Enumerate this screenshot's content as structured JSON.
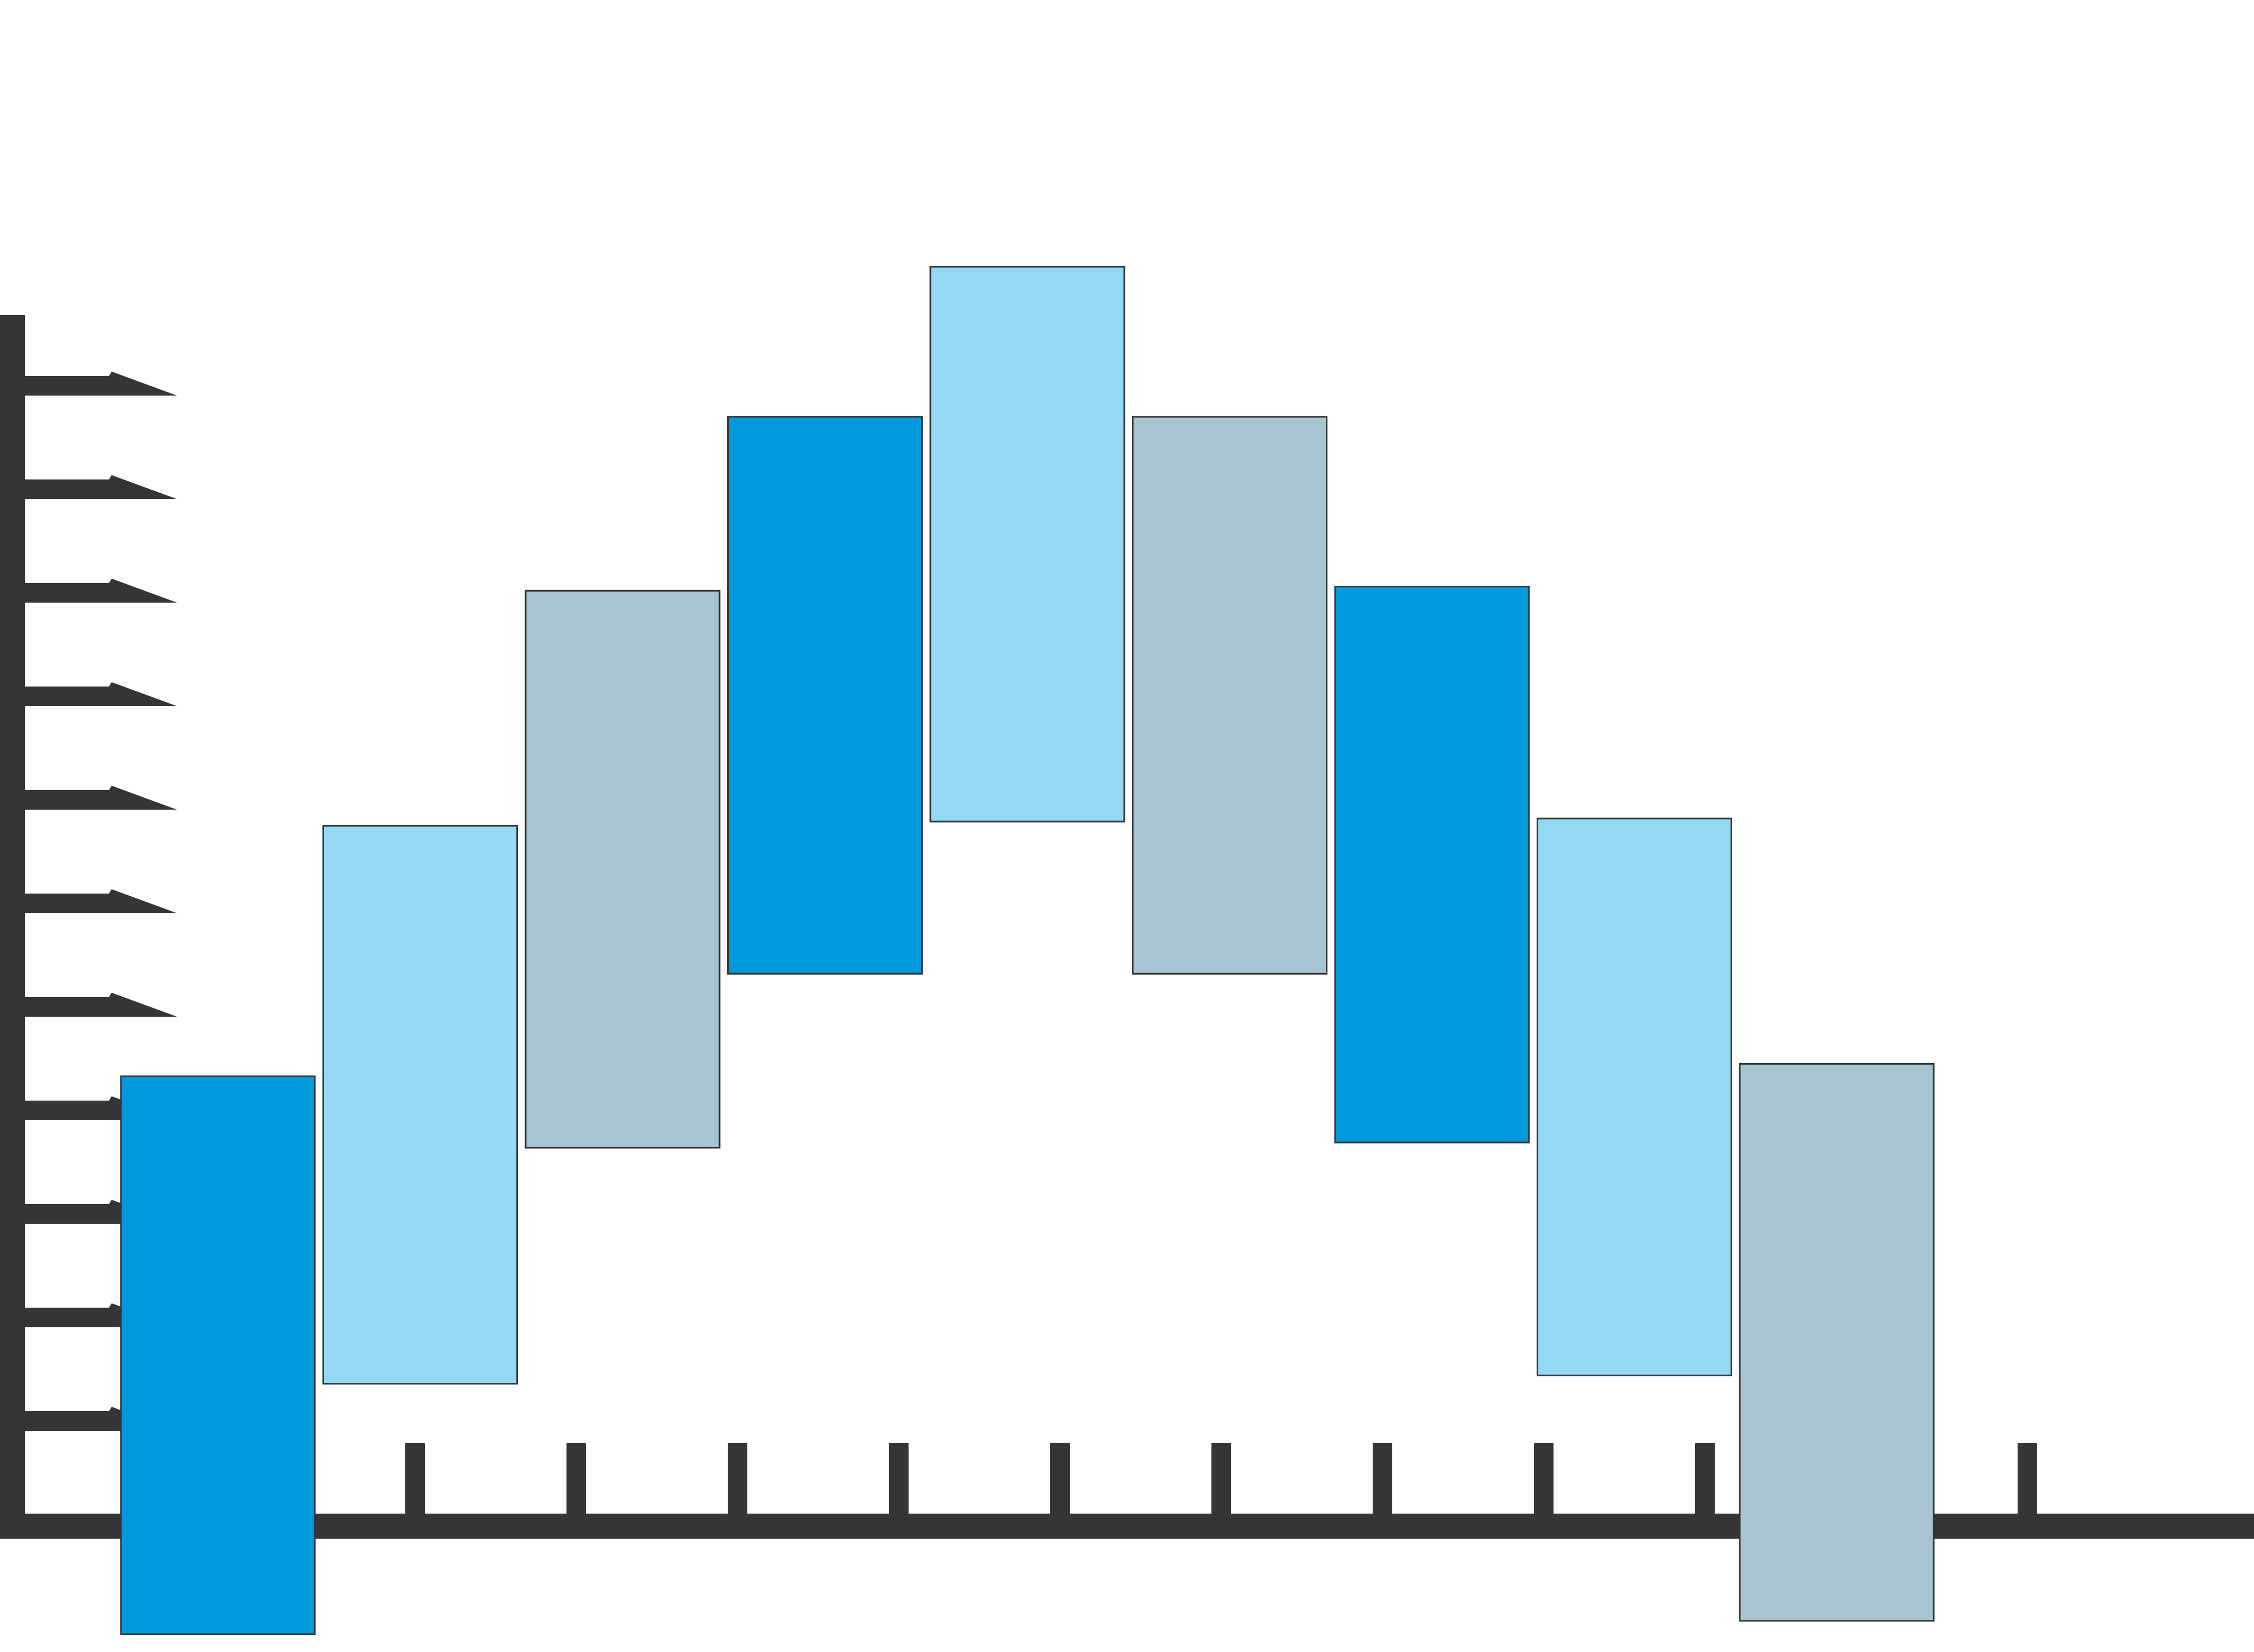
{
  "chart_data": {
    "type": "bar",
    "subtype": "floating-range",
    "title": "",
    "xlabel": "",
    "ylabel": "",
    "tick_labels_printed": false,
    "categories": [
      "",
      "",
      "",
      "",
      "",
      "",
      "",
      "",
      ""
    ],
    "ranges": [
      {
        "low": -1.06,
        "high": 4.33
      },
      {
        "low": 1.36,
        "high": 6.75
      },
      {
        "low": 3.64,
        "high": 9.02
      },
      {
        "low": 5.32,
        "high": 10.7
      },
      {
        "low": 6.79,
        "high": 12.15
      },
      {
        "low": 5.32,
        "high": 10.7
      },
      {
        "low": 3.69,
        "high": 9.06
      },
      {
        "low": 1.44,
        "high": 6.82
      },
      {
        "low": -0.93,
        "high": 4.45
      }
    ],
    "colors": [
      "#0099dc",
      "#93d9f6",
      "#a7c4d3",
      "#0099dc",
      "#93d9f6",
      "#a7c4d3",
      "#0099dc",
      "#93d9f6",
      "#a7c4d3"
    ],
    "axis_color": "#363435",
    "bar_stroke": "#363435",
    "ylim": [
      -1.18,
      12.15
    ],
    "xlim": [
      0,
      14
    ],
    "y_ticks": [
      1,
      2,
      3,
      4,
      5,
      6,
      7,
      8,
      9,
      10,
      11
    ],
    "x_ticks": [
      2.5,
      3.5,
      4.5,
      5.5,
      6.5,
      7.5,
      8.5,
      9.5,
      10.5,
      11.5,
      12.5
    ],
    "grid": false,
    "legend": "none"
  }
}
